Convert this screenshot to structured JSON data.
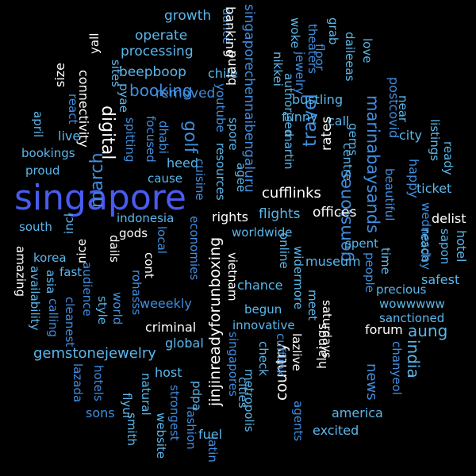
{
  "palette": {
    "background": "#000000",
    "colors": [
      "#4a5bf0",
      "#3f8ee0",
      "#5ab7ec",
      "#ffffff",
      "#6f8df5",
      "#2f6fcf"
    ]
  },
  "words": [
    {
      "text": "singapore",
      "c": 0
    },
    {
      "text": "marinabaysands",
      "c": 1
    },
    {
      "text": "gemstonejewelry",
      "c": 2
    },
    {
      "text": "jinjinreadyforunboxing",
      "c": 3
    },
    {
      "text": "singaporechennaibengaluru",
      "c": 1
    },
    {
      "text": "booking",
      "c": 1
    },
    {
      "text": "golf",
      "c": 1
    },
    {
      "text": "travel",
      "c": 1
    },
    {
      "text": "digital",
      "c": 3
    },
    {
      "text": "march",
      "c": 1
    },
    {
      "text": "gemstones",
      "c": 1
    },
    {
      "text": "india",
      "c": 2
    },
    {
      "text": "aung",
      "c": 2
    },
    {
      "text": "news",
      "c": 1
    },
    {
      "text": "country",
      "c": 3
    },
    {
      "text": "cufflinks",
      "c": 3
    },
    {
      "text": "growth",
      "c": 2
    },
    {
      "text": "operate",
      "c": 2
    },
    {
      "text": "processing",
      "c": 2
    },
    {
      "text": "beepboop",
      "c": 2
    },
    {
      "text": "dance",
      "c": 1
    },
    {
      "text": "banking",
      "c": 3
    },
    {
      "text": "chile",
      "c": 2
    },
    {
      "text": "youtube",
      "c": 1
    },
    {
      "text": "bland",
      "c": 3
    },
    {
      "text": "yall",
      "c": 3
    },
    {
      "text": "sites",
      "c": 2
    },
    {
      "text": "pyae",
      "c": 2
    },
    {
      "text": "connectivity",
      "c": 3
    },
    {
      "text": "size",
      "c": 3
    },
    {
      "text": "react",
      "c": 1
    },
    {
      "text": "removed",
      "c": 1
    },
    {
      "text": "woke",
      "c": 2
    },
    {
      "text": "nikkei",
      "c": 2
    },
    {
      "text": "jewelry",
      "c": 1
    },
    {
      "text": "theaters",
      "c": 1
    },
    {
      "text": "floor",
      "c": 1
    },
    {
      "text": "grab",
      "c": 2
    },
    {
      "text": "love",
      "c": 2
    },
    {
      "text": "daileeas",
      "c": 2
    },
    {
      "text": "authorised",
      "c": 2
    },
    {
      "text": "bustling",
      "c": 2
    },
    {
      "text": "funny",
      "c": 2
    },
    {
      "text": "postcovid",
      "c": 1
    },
    {
      "text": "near",
      "c": 2
    },
    {
      "text": "call",
      "c": 2
    },
    {
      "text": "gems",
      "c": 2
    },
    {
      "text": "centre",
      "c": 2
    },
    {
      "text": "rates",
      "c": 3
    },
    {
      "text": "martin",
      "c": 2
    },
    {
      "text": "april",
      "c": 2
    },
    {
      "text": "live",
      "c": 2
    },
    {
      "text": "bookings",
      "c": 2
    },
    {
      "text": "proud",
      "c": 2
    },
    {
      "text": "spitting",
      "c": 1
    },
    {
      "text": "focused",
      "c": 1
    },
    {
      "text": "dhabi",
      "c": 1
    },
    {
      "text": "heed",
      "c": 2
    },
    {
      "text": "cause",
      "c": 2
    },
    {
      "text": "cuisine",
      "c": 1
    },
    {
      "text": "spore",
      "c": 2
    },
    {
      "text": "resources",
      "c": 2
    },
    {
      "text": "agee",
      "c": 2
    },
    {
      "text": "listings",
      "c": 2
    },
    {
      "text": "city",
      "c": 2
    },
    {
      "text": "ready",
      "c": 2
    },
    {
      "text": "happy",
      "c": 1
    },
    {
      "text": "ticket",
      "c": 2
    },
    {
      "text": "south",
      "c": 2
    },
    {
      "text": "incl",
      "c": 2
    },
    {
      "text": "indonesia",
      "c": 2
    },
    {
      "text": "rights",
      "c": 3
    },
    {
      "text": "flights",
      "c": 2
    },
    {
      "text": "offices",
      "c": 3
    },
    {
      "text": "delist",
      "c": 3
    },
    {
      "text": "hotel",
      "c": 2
    },
    {
      "text": "wednesday",
      "c": 1
    },
    {
      "text": "beautiful",
      "c": 1
    },
    {
      "text": "reach",
      "c": 2
    },
    {
      "text": "sapon",
      "c": 2
    },
    {
      "text": "time",
      "c": 2
    },
    {
      "text": "safest",
      "c": 2
    },
    {
      "text": "amazing",
      "c": 3
    },
    {
      "text": "korea",
      "c": 2
    },
    {
      "text": "fast",
      "c": 2
    },
    {
      "text": "nice",
      "c": 3
    },
    {
      "text": "gods",
      "c": 3
    },
    {
      "text": "local",
      "c": 1
    },
    {
      "text": "economies",
      "c": 1
    },
    {
      "text": "worldwide",
      "c": 2
    },
    {
      "text": "online",
      "c": 2
    },
    {
      "text": "widermore",
      "c": 2
    },
    {
      "text": "museum",
      "c": 2
    },
    {
      "text": "spent",
      "c": 2
    },
    {
      "text": "people",
      "c": 1
    },
    {
      "text": "precious",
      "c": 2
    },
    {
      "text": "wowwwww",
      "c": 2
    },
    {
      "text": "sanctioned",
      "c": 2
    },
    {
      "text": "availability",
      "c": 2
    },
    {
      "text": "asia",
      "c": 2
    },
    {
      "text": "calling",
      "c": 1
    },
    {
      "text": "cleanest",
      "c": 1
    },
    {
      "text": "audience",
      "c": 1
    },
    {
      "text": "dails",
      "c": 3
    },
    {
      "text": "cont",
      "c": 3
    },
    {
      "text": "vietnam",
      "c": 3
    },
    {
      "text": "chance",
      "c": 2
    },
    {
      "text": "begun",
      "c": 2
    },
    {
      "text": "innovative",
      "c": 2
    },
    {
      "text": "meet",
      "c": 2
    },
    {
      "text": "saturdays",
      "c": 3
    },
    {
      "text": "forum",
      "c": 3
    },
    {
      "text": "world",
      "c": 1
    },
    {
      "text": "style",
      "c": 2
    },
    {
      "text": "rohasss",
      "c": 1
    },
    {
      "text": "weeekly",
      "c": 1
    },
    {
      "text": "criminal",
      "c": 3
    },
    {
      "text": "global",
      "c": 2
    },
    {
      "text": "check",
      "c": 2
    },
    {
      "text": "metropolis",
      "c": 2
    },
    {
      "text": "cufflink",
      "c": 1
    },
    {
      "text": "lazlive",
      "c": 3
    },
    {
      "text": "hlaings",
      "c": 3
    },
    {
      "text": "chanyeol",
      "c": 1
    },
    {
      "text": "lazada",
      "c": 1
    },
    {
      "text": "hotels",
      "c": 1
    },
    {
      "text": "sons",
      "c": 1
    },
    {
      "text": "flyui",
      "c": 2
    },
    {
      "text": "natural",
      "c": 2
    },
    {
      "text": "host",
      "c": 2
    },
    {
      "text": "strongest",
      "c": 1
    },
    {
      "text": "fashion",
      "c": 1
    },
    {
      "text": "pdpa",
      "c": 2
    },
    {
      "text": "singapores",
      "c": 1
    },
    {
      "text": "cities",
      "c": 2
    },
    {
      "text": "america",
      "c": 2
    },
    {
      "text": "agents",
      "c": 1
    },
    {
      "text": "excited",
      "c": 2
    },
    {
      "text": "smith",
      "c": 2
    },
    {
      "text": "website",
      "c": 2
    },
    {
      "text": "latin",
      "c": 1
    },
    {
      "text": "fuel",
      "c": 2
    },
    {
      "text": "eyes",
      "c": 3
    }
  ]
}
